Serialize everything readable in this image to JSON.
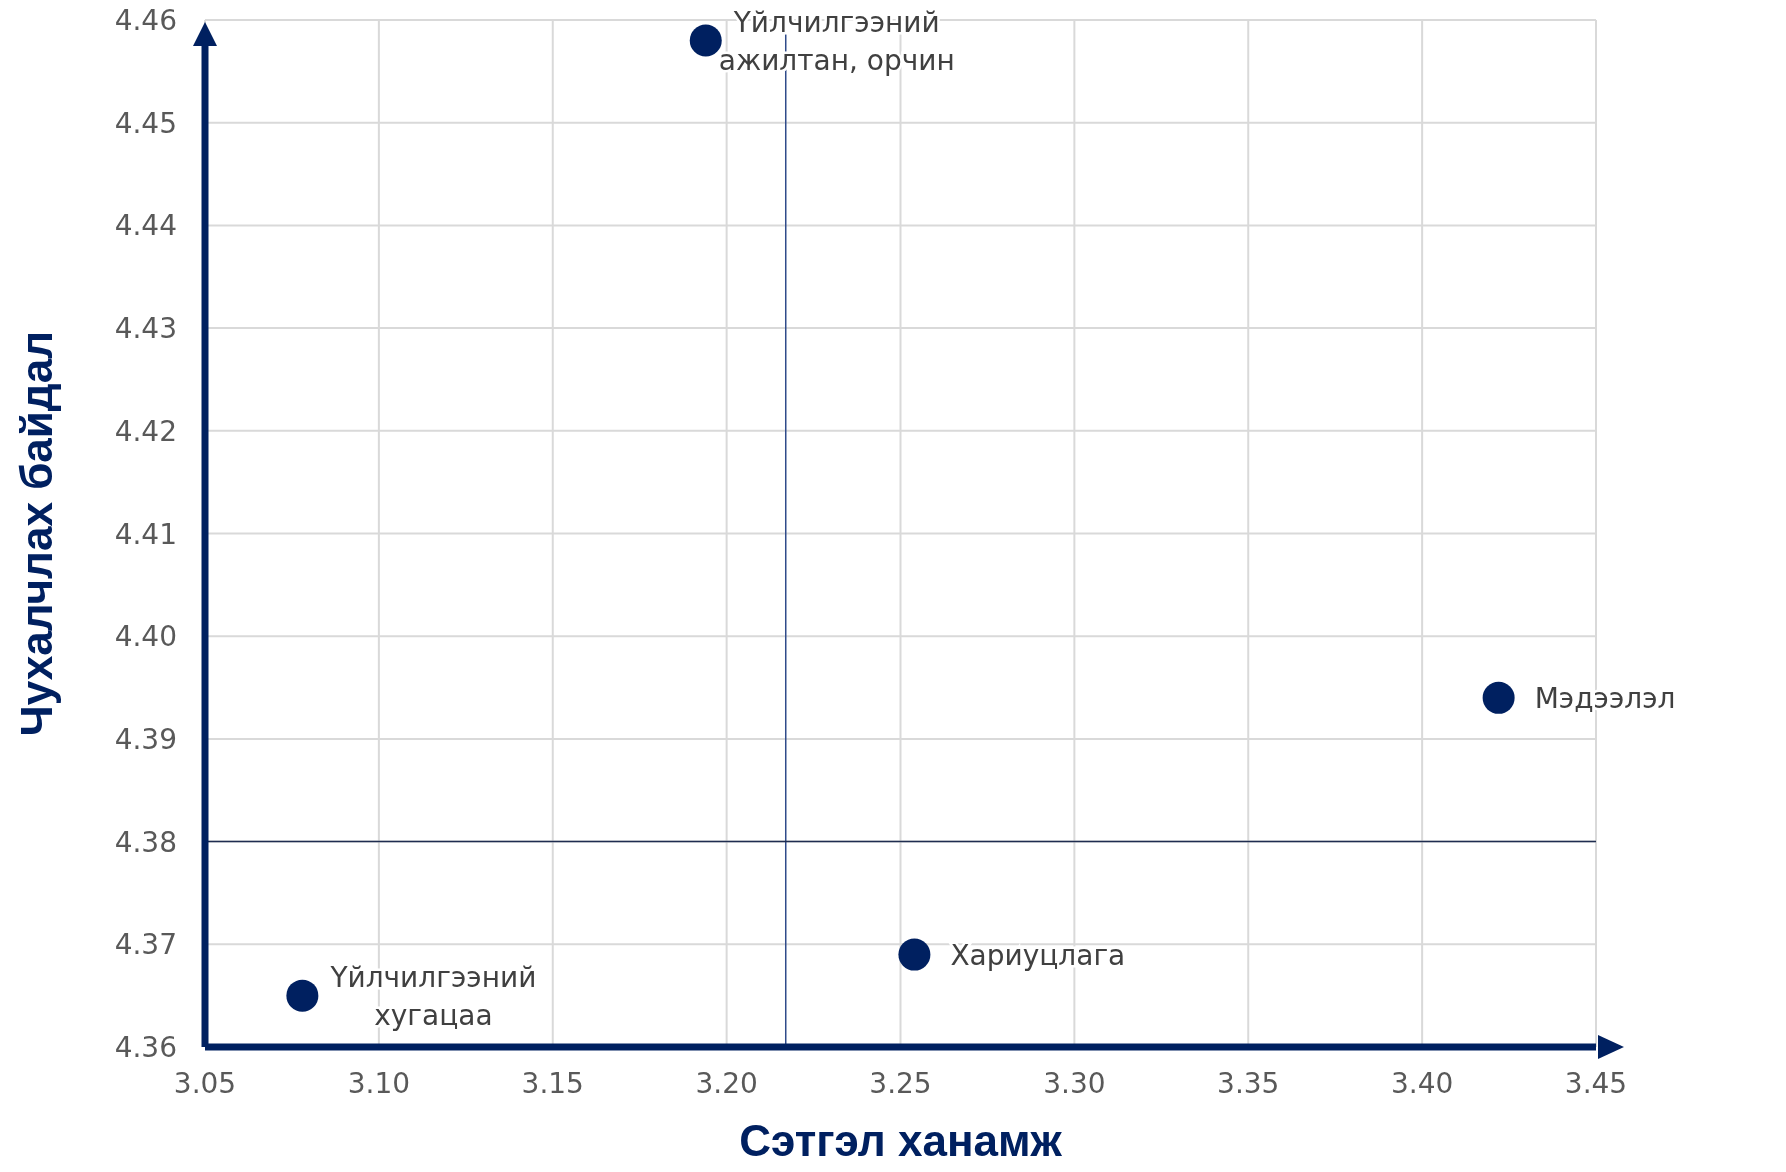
{
  "chart_data": {
    "type": "scatter",
    "xlabel": "Сэтгэл ханамж",
    "ylabel": "Чухалчлах байдал",
    "x": [
      3.078,
      3.194,
      3.254,
      3.422
    ],
    "values": [
      4.365,
      4.458,
      4.369,
      4.394
    ],
    "color": "#002060",
    "marker": "circle",
    "xlim": [
      3.05,
      3.45
    ],
    "xticks": [
      {
        "value": 3.05,
        "label": "3.05"
      },
      {
        "value": 3.1,
        "label": "3.10"
      },
      {
        "value": 3.15,
        "label": "3.15"
      },
      {
        "value": 3.2,
        "label": "3.20"
      },
      {
        "value": 3.25,
        "label": "3.25"
      },
      {
        "value": 3.3,
        "label": "3.30"
      },
      {
        "value": 3.35,
        "label": "3.35"
      },
      {
        "value": 3.4,
        "label": "3.40"
      },
      {
        "value": 3.45,
        "label": "3.45"
      }
    ],
    "ylim": [
      4.36,
      4.46
    ],
    "yticks": [
      4.36,
      4.37,
      4.38,
      4.39,
      {
        "value": 4.4,
        "label": "4.40"
      },
      4.41,
      4.42,
      4.43,
      4.44,
      4.45,
      4.46
    ],
    "grid": true,
    "ref_lines": [
      {
        "axis": "x",
        "value": 3.217,
        "color": "#2f4b8a"
      },
      {
        "axis": "y",
        "value": 4.38,
        "color": "#1f2d50"
      }
    ],
    "annotations": [
      {
        "text": "Үйлчилгээний\nхугацаа",
        "x": 3.078,
        "y": 4.365
      },
      {
        "text": "Үйлчилгээний\nажилтан, орчин",
        "x": 3.194,
        "y": 4.458
      },
      {
        "text": "Хариуцлага",
        "x": 3.254,
        "y": 4.369
      },
      {
        "text": "Мэдээлэл",
        "x": 3.422,
        "y": 4.394
      }
    ]
  }
}
